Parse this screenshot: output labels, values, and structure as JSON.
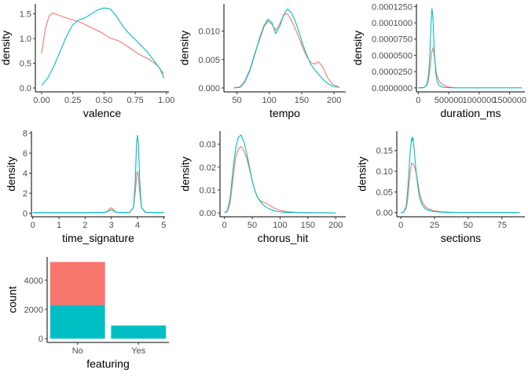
{
  "colors": {
    "group1": "#f8766d",
    "group2": "#00bfc4"
  },
  "chart_data": [
    {
      "type": "line",
      "xlabel": "valence",
      "ylabel": "density",
      "xlim": [
        -0.05,
        1.02
      ],
      "ylim": [
        -0.08,
        1.7
      ],
      "xticks": [
        0,
        0.25,
        0.5,
        0.75,
        1
      ],
      "xtick_labels": [
        "0.00",
        "0.25",
        "0.50",
        "0.75",
        "1.00"
      ],
      "yticks": [
        0,
        0.5,
        1,
        1.5
      ],
      "ytick_labels": [
        "0.0",
        "0.5",
        "1.0",
        "1.5"
      ],
      "series": [
        {
          "color": "#f8766d",
          "x": [
            0,
            0.03,
            0.06,
            0.09,
            0.12,
            0.18,
            0.25,
            0.32,
            0.4,
            0.48,
            0.55,
            0.62,
            0.7,
            0.78,
            0.86,
            0.93,
            0.98
          ],
          "y": [
            0.7,
            1.2,
            1.45,
            1.52,
            1.49,
            1.43,
            1.38,
            1.32,
            1.22,
            1.12,
            1.01,
            0.95,
            0.82,
            0.68,
            0.58,
            0.45,
            0.28
          ]
        },
        {
          "color": "#00bfc4",
          "x": [
            0,
            0.05,
            0.1,
            0.15,
            0.2,
            0.25,
            0.3,
            0.35,
            0.4,
            0.45,
            0.5,
            0.55,
            0.6,
            0.65,
            0.7,
            0.75,
            0.8,
            0.85,
            0.9,
            0.95,
            0.98
          ],
          "y": [
            0.05,
            0.2,
            0.45,
            0.75,
            1.05,
            1.28,
            1.38,
            1.42,
            1.5,
            1.58,
            1.62,
            1.6,
            1.45,
            1.25,
            1.1,
            0.98,
            0.85,
            0.72,
            0.55,
            0.38,
            0.2
          ]
        }
      ]
    },
    {
      "type": "line",
      "xlabel": "tempo",
      "ylabel": "density",
      "xlim": [
        30,
        218
      ],
      "ylim": [
        -0.0007,
        0.0148
      ],
      "xticks": [
        50,
        100,
        150,
        200
      ],
      "xtick_labels": [
        "50",
        "100",
        "150",
        "200"
      ],
      "yticks": [
        0,
        0.005,
        0.01
      ],
      "ytick_labels": [
        "0.000",
        "0.005",
        "0.010"
      ],
      "series": [
        {
          "color": "#f8766d",
          "x": [
            45,
            55,
            62,
            70,
            78,
            85,
            92,
            98,
            104,
            110,
            116,
            122,
            128,
            134,
            140,
            146,
            152,
            158,
            164,
            170,
            176,
            182,
            190,
            198,
            208
          ],
          "y": [
            0,
            0.0002,
            0.0012,
            0.0032,
            0.0062,
            0.0085,
            0.0108,
            0.0118,
            0.0112,
            0.0102,
            0.0112,
            0.0128,
            0.0131,
            0.012,
            0.0105,
            0.0088,
            0.007,
            0.0055,
            0.0045,
            0.0042,
            0.0046,
            0.0038,
            0.0018,
            0.0006,
            0.0001
          ]
        },
        {
          "color": "#00bfc4",
          "x": [
            45,
            55,
            62,
            70,
            78,
            85,
            92,
            98,
            104,
            110,
            116,
            122,
            128,
            134,
            140,
            146,
            152,
            158,
            164,
            170,
            176,
            182,
            190,
            198,
            208
          ],
          "y": [
            0,
            0.0001,
            0.001,
            0.003,
            0.006,
            0.0088,
            0.011,
            0.0121,
            0.0115,
            0.0096,
            0.0108,
            0.0128,
            0.0139,
            0.0133,
            0.0118,
            0.0098,
            0.0076,
            0.0058,
            0.0042,
            0.0032,
            0.0024,
            0.0016,
            0.0008,
            0.0003,
            0.0001
          ]
        }
      ]
    },
    {
      "type": "line",
      "xlabel": "duration_ms",
      "ylabel": "density",
      "xlim": [
        -30000,
        1750000
      ],
      "ylim": [
        -6.2e-06,
        0.000129
      ],
      "xticks": [
        0,
        500000,
        1000000,
        1500000
      ],
      "xtick_labels": [
        "0",
        "500000",
        "1000000",
        "1500000"
      ],
      "yticks": [
        0,
        2.5e-05,
        5e-05,
        7.5e-05,
        0.0001,
        0.000125
      ],
      "ytick_labels": [
        "0.0000000",
        "0.0000250",
        "0.0000500",
        "0.0000750",
        "0.0001000",
        "0.0001250"
      ],
      "series": [
        {
          "color": "#f8766d",
          "x": [
            0,
            60000,
            100000,
            140000,
            170000,
            200000,
            220000,
            240000,
            260000,
            280000,
            300000,
            330000,
            360000,
            400000,
            450000,
            520000,
            600000
          ],
          "y": [
            0,
            2e-07,
            1e-06,
            4e-06,
            1.2e-05,
            3.5e-05,
            5.5e-05,
            6.1e-05,
            5.2e-05,
            3.5e-05,
            2.2e-05,
            1.3e-05,
            8e-06,
            5e-06,
            3e-06,
            1e-06,
            0
          ]
        },
        {
          "color": "#00bfc4",
          "x": [
            0,
            80000,
            120000,
            150000,
            170000,
            190000,
            210000,
            225000,
            240000,
            255000,
            270000,
            290000,
            310000,
            340000,
            380000,
            450000,
            600000,
            900000,
            1300000,
            1700000
          ],
          "y": [
            0,
            2e-07,
            2e-06,
            8e-06,
            2e-05,
            5e-05,
            0.0001,
            0.000122,
            0.00011,
            7.5e-05,
            4.5e-05,
            2.2e-05,
            1e-05,
            4e-06,
            1.5e-06,
            5e-07,
            1e-07,
            1e-07,
            1e-07,
            1e-07
          ]
        }
      ]
    },
    {
      "type": "line",
      "xlabel": "time_signature",
      "ylabel": "density",
      "xlim": [
        -0.05,
        5.05
      ],
      "ylim": [
        -0.35,
        8.2
      ],
      "xticks": [
        0,
        1,
        2,
        3,
        4,
        5
      ],
      "xtick_labels": [
        "0",
        "1",
        "2",
        "3",
        "4",
        "5"
      ],
      "yticks": [
        0,
        2,
        4,
        6,
        8
      ],
      "ytick_labels": [
        "0",
        "2",
        "4",
        "6",
        "8"
      ],
      "series": [
        {
          "color": "#f8766d",
          "x": [
            0,
            1,
            2,
            2.7,
            2.85,
            2.95,
            3.0,
            3.05,
            3.15,
            3.3,
            3.7,
            3.85,
            3.93,
            3.97,
            4.0,
            4.03,
            4.07,
            4.15,
            4.3,
            4.8,
            5
          ],
          "y": [
            0.05,
            0.05,
            0.05,
            0.06,
            0.2,
            0.45,
            0.55,
            0.45,
            0.15,
            0.06,
            0.08,
            0.6,
            2.5,
            3.8,
            4.2,
            3.8,
            2.5,
            0.6,
            0.08,
            0.05,
            0.08
          ]
        },
        {
          "color": "#00bfc4",
          "x": [
            0,
            1,
            2,
            2.7,
            2.85,
            2.95,
            3.0,
            3.05,
            3.15,
            3.3,
            3.7,
            3.85,
            3.92,
            3.96,
            4.0,
            4.04,
            4.08,
            4.15,
            4.3,
            4.8,
            5
          ],
          "y": [
            0.07,
            0.07,
            0.07,
            0.08,
            0.15,
            0.3,
            0.35,
            0.3,
            0.12,
            0.08,
            0.1,
            0.6,
            3.5,
            6.8,
            7.8,
            6.8,
            3.5,
            0.6,
            0.1,
            0.07,
            0.1
          ]
        }
      ]
    },
    {
      "type": "line",
      "xlabel": "chorus_hit",
      "ylabel": "density",
      "xlim": [
        -8,
        218
      ],
      "ylim": [
        -0.0017,
        0.0357
      ],
      "xticks": [
        0,
        50,
        100,
        150,
        200
      ],
      "xtick_labels": [
        "0",
        "50",
        "100",
        "150",
        "200"
      ],
      "yticks": [
        0,
        0.01,
        0.02,
        0.03
      ],
      "ytick_labels": [
        "0.00",
        "0.01",
        "0.02",
        "0.03"
      ],
      "series": [
        {
          "color": "#f8766d",
          "x": [
            0,
            5,
            10,
            15,
            20,
            25,
            30,
            35,
            40,
            45,
            50,
            55,
            60,
            65,
            70,
            75,
            80,
            90,
            100,
            110,
            130,
            160,
            200
          ],
          "y": [
            0,
            0.0005,
            0.004,
            0.014,
            0.024,
            0.028,
            0.029,
            0.027,
            0.024,
            0.019,
            0.014,
            0.0095,
            0.0065,
            0.0052,
            0.0048,
            0.0042,
            0.0035,
            0.002,
            0.0011,
            0.0006,
            0.0002,
            5e-05,
            0
          ]
        },
        {
          "color": "#00bfc4",
          "x": [
            0,
            5,
            10,
            15,
            20,
            25,
            30,
            35,
            40,
            45,
            50,
            55,
            60,
            65,
            70,
            75,
            80,
            90,
            100,
            110,
            130,
            160,
            200
          ],
          "y": [
            0,
            0.0008,
            0.006,
            0.018,
            0.028,
            0.033,
            0.034,
            0.031,
            0.026,
            0.02,
            0.014,
            0.0095,
            0.0065,
            0.0048,
            0.0035,
            0.0025,
            0.0018,
            0.0009,
            0.0004,
            0.0002,
            0.0001,
            3e-05,
            0
          ]
        }
      ]
    },
    {
      "type": "line",
      "xlabel": "sections",
      "ylabel": "density",
      "xlim": [
        -3,
        92
      ],
      "ylim": [
        -0.01,
        0.197
      ],
      "xticks": [
        0,
        25,
        50,
        75
      ],
      "xtick_labels": [
        "0",
        "25",
        "50",
        "75"
      ],
      "yticks": [
        0,
        0.05,
        0.1,
        0.15
      ],
      "ytick_labels": [
        "0.00",
        "0.05",
        "0.10",
        "0.15"
      ],
      "series": [
        {
          "color": "#f8766d",
          "x": [
            0,
            2,
            4,
            5,
            6,
            7,
            8,
            9,
            10,
            11,
            12,
            13,
            14,
            16,
            18,
            20,
            24,
            30,
            40,
            60,
            88
          ],
          "y": [
            0,
            0.001,
            0.01,
            0.03,
            0.065,
            0.1,
            0.12,
            0.118,
            0.112,
            0.1,
            0.085,
            0.065,
            0.045,
            0.025,
            0.015,
            0.01,
            0.005,
            0.002,
            0.0005,
            0.0001,
            0
          ]
        },
        {
          "color": "#00bfc4",
          "x": [
            0,
            2,
            4,
            5,
            6,
            7,
            8,
            8.5,
            9,
            9.5,
            10,
            11,
            12,
            13,
            14,
            16,
            18,
            20,
            24,
            30,
            40,
            60,
            88
          ],
          "y": [
            0,
            0.001,
            0.015,
            0.05,
            0.1,
            0.15,
            0.18,
            0.175,
            0.183,
            0.165,
            0.15,
            0.11,
            0.08,
            0.055,
            0.035,
            0.018,
            0.01,
            0.006,
            0.003,
            0.001,
            0.0002,
            0.0001,
            0
          ]
        }
      ]
    },
    {
      "type": "bar",
      "stacked": true,
      "xlabel": "featuring",
      "ylabel": "count",
      "categories": [
        "No",
        "Yes"
      ],
      "ylim": [
        -260,
        5600
      ],
      "yticks": [
        0,
        2000,
        4000
      ],
      "ytick_labels": [
        "0",
        "2000",
        "4000"
      ],
      "series": [
        {
          "color": "#00bfc4",
          "values": [
            2300,
            900
          ]
        },
        {
          "color": "#f8766d",
          "values": [
            2950,
            0
          ]
        }
      ]
    }
  ]
}
